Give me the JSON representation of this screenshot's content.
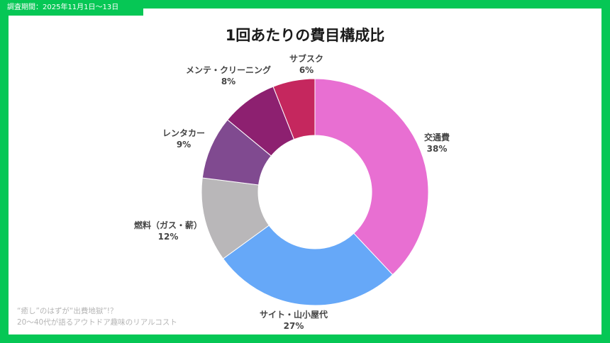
{
  "header": {
    "survey_period": "調査期間：2025年11月1日〜13日"
  },
  "footer": {
    "line1": "“癒し”のはずが“出費地獄”!？",
    "line2": "20〜40代が語るアウトドア趣味のリアルコスト"
  },
  "chart_data": {
    "type": "pie",
    "donut": true,
    "title": "1回あたりの費目構成比",
    "unit": "%",
    "slices": [
      {
        "label": "交通費",
        "value": 38,
        "color": "#e86fd2"
      },
      {
        "label": "サイト・山小屋代",
        "value": 27,
        "color": "#66a8f8"
      },
      {
        "label": "燃料（ガス・薪）",
        "value": 12,
        "color": "#b9b7b9"
      },
      {
        "label": "レンタカー",
        "value": 9,
        "color": "#804a90"
      },
      {
        "label": "メンテ・クリーニング",
        "value": 8,
        "color": "#8d2070"
      },
      {
        "label": "サブスク",
        "value": 6,
        "color": "#c5275e"
      }
    ]
  }
}
